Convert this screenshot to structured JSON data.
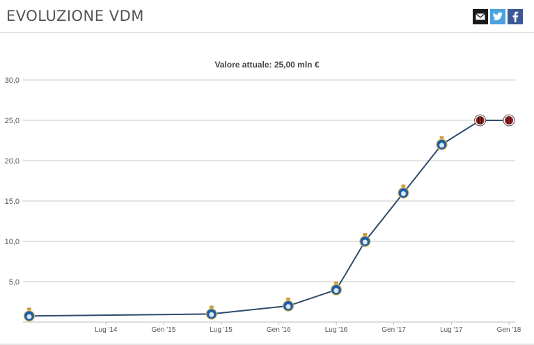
{
  "header": {
    "title": "EVOLUZIONE VDM",
    "share": [
      "mail-icon",
      "twitter-icon",
      "facebook-icon"
    ]
  },
  "chart_data": {
    "type": "line",
    "title": "",
    "subtitle": "Valore attuale: 25,00 mln €",
    "xlabel": "",
    "ylabel": "",
    "ylim": [
      0,
      30
    ],
    "y_ticks": [
      "5,0",
      "10,0",
      "15,0",
      "20,0",
      "25,0",
      "30,0"
    ],
    "y_tick_values": [
      5,
      10,
      15,
      20,
      25,
      30
    ],
    "x_ticks": [
      "Lug '14",
      "Gen '15",
      "Lug '15",
      "Gen '16",
      "Lug '16",
      "Gen '17",
      "Lug '17",
      "Gen '18"
    ],
    "x_range": [
      "2013-11",
      "2018-01"
    ],
    "grid": true,
    "line_color": "#2e4a6b",
    "series": [
      {
        "values": [
          {
            "x": "2013-11",
            "y": 0.75,
            "club": "porto"
          },
          {
            "x": "2015-06",
            "y": 1.0,
            "club": "porto"
          },
          {
            "x": "2016-02",
            "y": 2.0,
            "club": "porto"
          },
          {
            "x": "2016-07",
            "y": 4.0,
            "club": "porto"
          },
          {
            "x": "2016-10",
            "y": 10.0,
            "club": "porto"
          },
          {
            "x": "2017-02",
            "y": 16.0,
            "club": "porto"
          },
          {
            "x": "2017-06",
            "y": 22.0,
            "club": "porto"
          },
          {
            "x": "2017-10",
            "y": 25.0,
            "club": "milan"
          },
          {
            "x": "2018-01",
            "y": 25.0,
            "club": "milan"
          }
        ]
      }
    ],
    "club_colors": {
      "porto": "#1f5fa8",
      "milan": "#9b1b1e"
    }
  }
}
